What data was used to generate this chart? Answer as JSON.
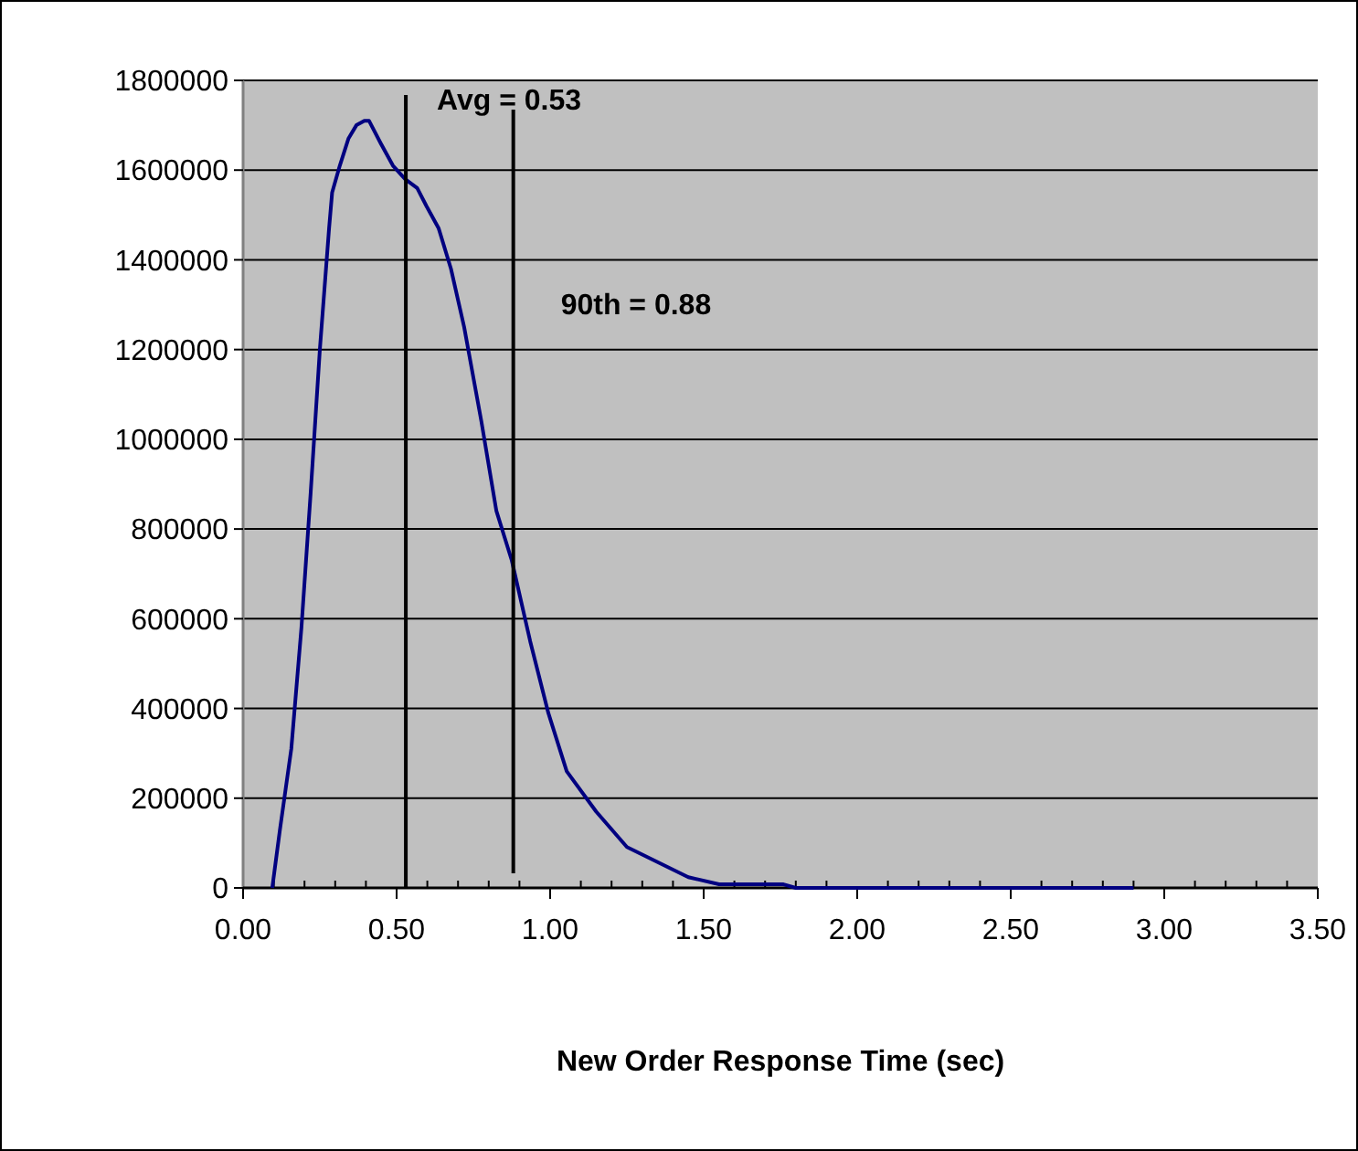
{
  "chart_data": {
    "type": "line",
    "xlabel": "New Order Response Time (sec)",
    "xlim": [
      0,
      3.5
    ],
    "ylim": [
      0,
      1800000
    ],
    "xticks": [
      {
        "value": 0,
        "label": "0.00"
      },
      {
        "value": 0.1,
        "label": null
      },
      {
        "value": 0.2,
        "label": null
      },
      {
        "value": 0.3,
        "label": null
      },
      {
        "value": 0.4,
        "label": null
      },
      {
        "value": 0.5,
        "label": "0.50"
      },
      {
        "value": 0.6,
        "label": null
      },
      {
        "value": 0.7,
        "label": null
      },
      {
        "value": 0.8,
        "label": null
      },
      {
        "value": 0.9,
        "label": null
      },
      {
        "value": 1,
        "label": "1.00"
      },
      {
        "value": 1.1,
        "label": null
      },
      {
        "value": 1.2,
        "label": null
      },
      {
        "value": 1.3,
        "label": null
      },
      {
        "value": 1.4,
        "label": null
      },
      {
        "value": 1.5,
        "label": "1.50"
      },
      {
        "value": 1.6,
        "label": null
      },
      {
        "value": 1.7,
        "label": null
      },
      {
        "value": 1.8,
        "label": null
      },
      {
        "value": 1.9,
        "label": null
      },
      {
        "value": 2,
        "label": "2.00"
      },
      {
        "value": 2.1,
        "label": null
      },
      {
        "value": 2.2,
        "label": null
      },
      {
        "value": 2.3,
        "label": null
      },
      {
        "value": 2.4,
        "label": null
      },
      {
        "value": 2.5,
        "label": "2.50"
      },
      {
        "value": 2.6,
        "label": null
      },
      {
        "value": 2.7,
        "label": null
      },
      {
        "value": 2.8,
        "label": null
      },
      {
        "value": 2.9,
        "label": null
      },
      {
        "value": 3,
        "label": "3.00"
      },
      {
        "value": 3.1,
        "label": null
      },
      {
        "value": 3.2,
        "label": null
      },
      {
        "value": 3.3,
        "label": null
      },
      {
        "value": 3.4,
        "label": null
      },
      {
        "value": 3.5,
        "label": "3.50"
      }
    ],
    "yticks": [
      0,
      200000,
      400000,
      600000,
      800000,
      1000000,
      1200000,
      1400000,
      1600000,
      1800000
    ],
    "grid": "y",
    "line_style": "solid",
    "series": [
      {
        "color": "#000080",
        "x": [
          0.095,
          0.12,
          0.157,
          0.19,
          0.22,
          0.25,
          0.28,
          0.29,
          0.315,
          0.343,
          0.369,
          0.395,
          0.41,
          0.448,
          0.488,
          0.528,
          0.567,
          0.597,
          0.637,
          0.677,
          0.72,
          0.776,
          0.825,
          0.875,
          0.935,
          0.994,
          1.054,
          1.15,
          1.25,
          1.45,
          1.55,
          1.76,
          1.8,
          2.9
        ],
        "values": [
          0,
          130000,
          310000,
          580000,
          880000,
          1200000,
          1470000,
          1550000,
          1610000,
          1670000,
          1700000,
          1710000,
          1710000,
          1660000,
          1610000,
          1580000,
          1560000,
          1520000,
          1470000,
          1380000,
          1250000,
          1040000,
          840000,
          730000,
          550000,
          390000,
          260000,
          170000,
          91000,
          24000,
          8000,
          8000,
          0,
          0
        ]
      }
    ],
    "ref_lines": [
      {
        "axis": "x",
        "value": 0.53,
        "label": "Avg = 0.53",
        "color": "#000000"
      },
      {
        "axis": "x",
        "value": 0.88,
        "label": "90th = 0.88",
        "color": "#000000"
      }
    ]
  }
}
